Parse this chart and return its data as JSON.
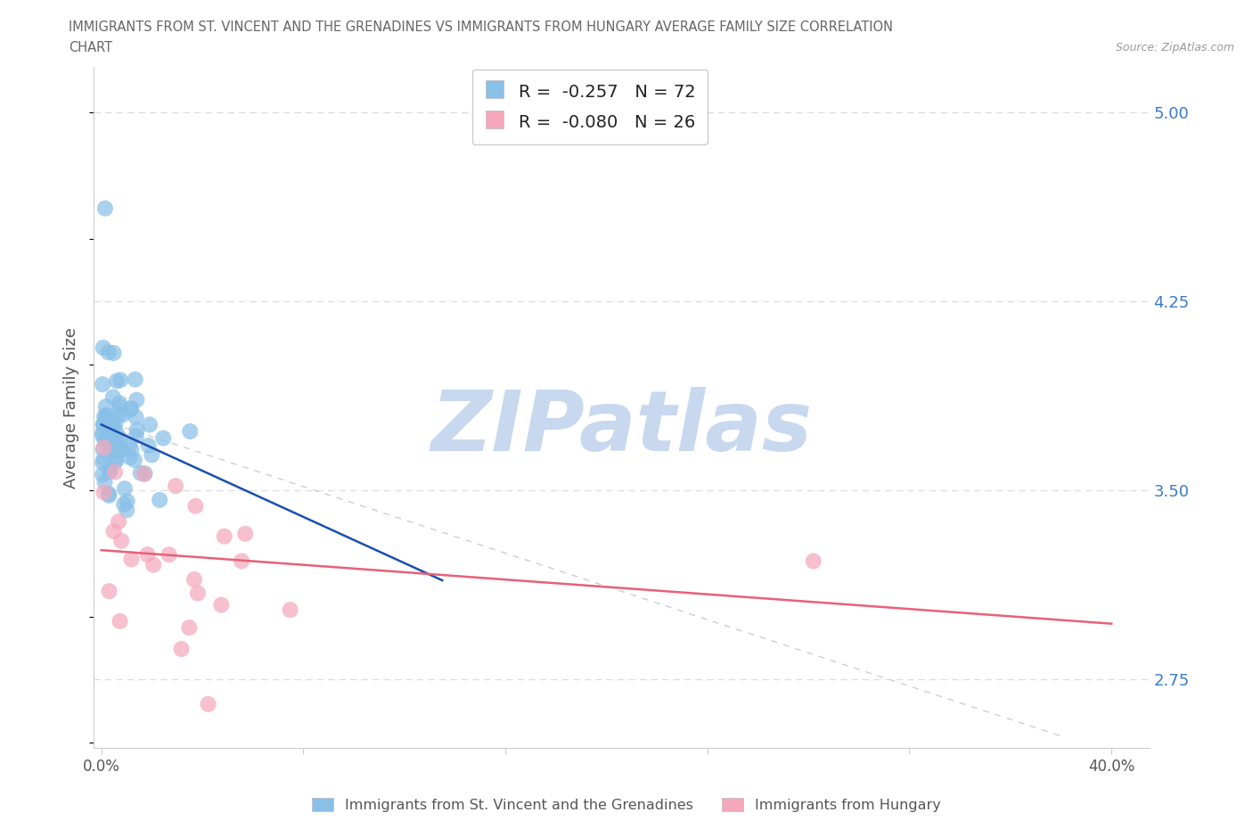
{
  "title_line1": "IMMIGRANTS FROM ST. VINCENT AND THE GRENADINES VS IMMIGRANTS FROM HUNGARY AVERAGE FAMILY SIZE CORRELATION",
  "title_line2": "CHART",
  "source": "Source: ZipAtlas.com",
  "ylabel": "Average Family Size",
  "y_tick_labels": [
    "2.75",
    "3.50",
    "4.25",
    "5.00"
  ],
  "y_ticks": [
    2.75,
    3.5,
    4.25,
    5.0
  ],
  "xlim": [
    -0.003,
    0.415
  ],
  "ylim": [
    2.48,
    5.18
  ],
  "blue_color": "#89C0E8",
  "pink_color": "#F5A8BC",
  "blue_line_color": "#1A4FAF",
  "pink_line_color": "#E8607A",
  "diag_color": "#C8D0D8",
  "grid_color": "#DDDDDD",
  "watermark": "ZIPatlas",
  "watermark_color": "#C8D8EE",
  "blue_seed": 10,
  "pink_seed": 20
}
